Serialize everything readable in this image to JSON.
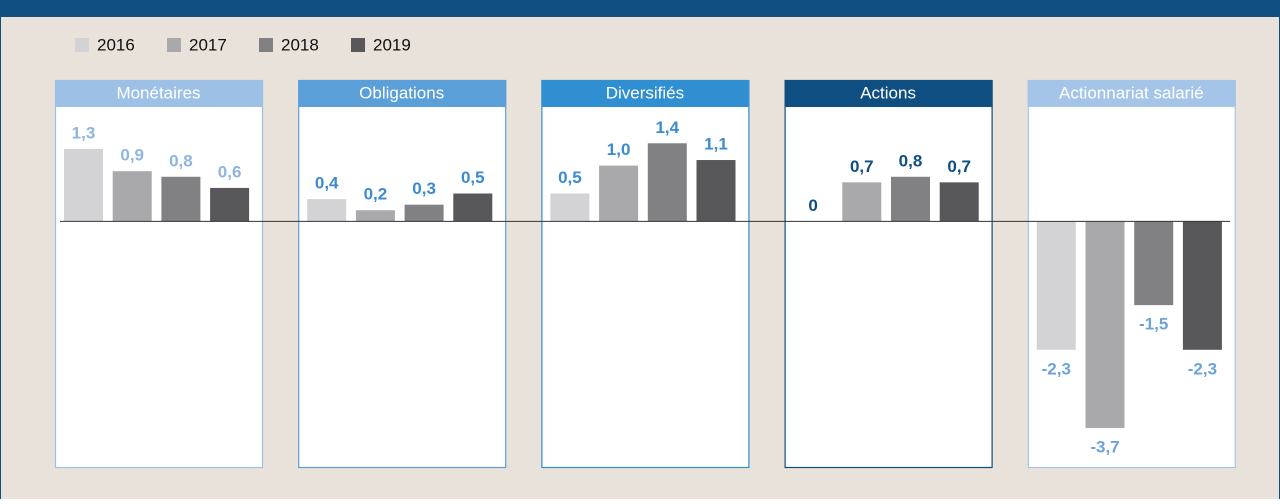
{
  "chart_data": {
    "type": "bar",
    "categories": [
      "Monétaires",
      "Obligations",
      "Diversifiés",
      "Actions",
      "Actionnariat salarié"
    ],
    "panel_colors": [
      "#9dc0e6",
      "#5b9fd9",
      "#2f8fd0",
      "#0e4e80",
      "#a5c5e8"
    ],
    "label_colors": [
      "#8fb5de",
      "#3a8bd0",
      "#3a8bd0",
      "#0e4e80",
      "#6ea3d8"
    ],
    "series": [
      {
        "name": "2016",
        "color": "#d3d3d5",
        "values": [
          1.3,
          0.4,
          0.5,
          0,
          -2.3
        ],
        "value_labels": [
          "1,3",
          "0,4",
          "0,5",
          "0",
          "-2,3"
        ]
      },
      {
        "name": "2017",
        "color": "#a9a9ac",
        "values": [
          0.9,
          0.2,
          1.0,
          0.7,
          -3.7
        ],
        "value_labels": [
          "0,9",
          "0,2",
          "1,0",
          "0,7",
          "-3,7"
        ]
      },
      {
        "name": "2018",
        "color": "#818184",
        "values": [
          0.8,
          0.3,
          1.4,
          0.8,
          -1.5
        ],
        "value_labels": [
          "0,8",
          "0,3",
          "1,4",
          "0,8",
          "-1,5"
        ]
      },
      {
        "name": "2019",
        "color": "#58585b",
        "values": [
          0.6,
          0.5,
          1.1,
          0.7,
          -2.3
        ],
        "value_labels": [
          "0,6",
          "0,5",
          "1,1",
          "0,7",
          "-2,3"
        ]
      }
    ],
    "ylim": [
      -4.4,
      2.05
    ]
  }
}
